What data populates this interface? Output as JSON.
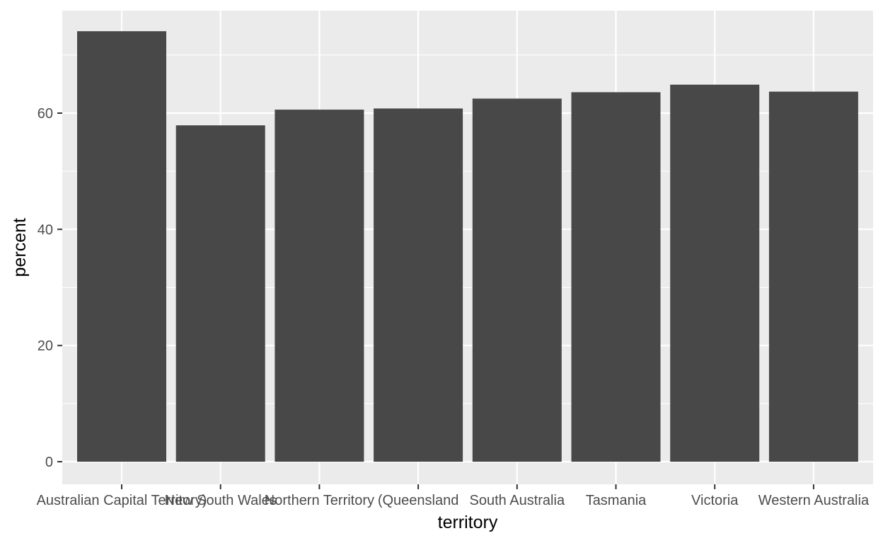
{
  "chart_data": {
    "type": "bar",
    "title": "",
    "xlabel": "territory",
    "ylabel": "percent",
    "categories": [
      "Australian Capital Territory",
      "New South Wales",
      "Northern Territory",
      "Queensland",
      "South Australia",
      "Tasmania",
      "Victoria",
      "Western Australia"
    ],
    "category_labels": [
      "Australian Capital Territory)",
      "New South Wales",
      "Northern Territory",
      "(Queensland",
      "South Australia",
      "Tasmania",
      "Victoria",
      "Western Australia"
    ],
    "values": [
      74.1,
      57.9,
      60.6,
      60.8,
      62.5,
      63.6,
      64.9,
      63.7
    ],
    "ylim": [
      0,
      78.0
    ],
    "yticks": [
      0,
      20,
      40,
      60
    ],
    "grid": true,
    "legend": "none",
    "colors": {
      "panel": "#ebebeb",
      "grid": "#ffffff",
      "bar": "#484848",
      "tick": "#333333"
    }
  }
}
